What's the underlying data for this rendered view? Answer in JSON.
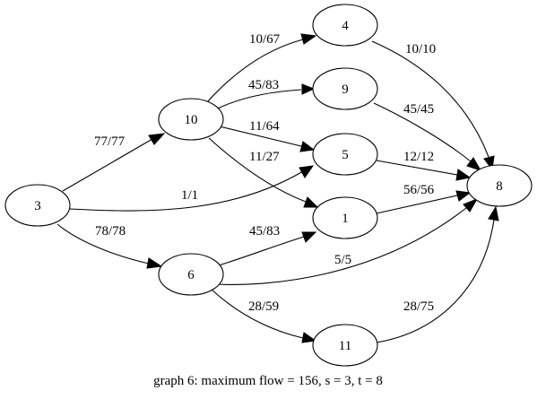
{
  "caption": "graph  6: maximum flow = 156, s = 3, t = 8",
  "nodes": {
    "n3": "3",
    "n10": "10",
    "n6": "6",
    "n4": "4",
    "n9": "9",
    "n5": "5",
    "n1": "1",
    "n11": "11",
    "n8": "8"
  },
  "edges": {
    "e3_10": "77/77",
    "e3_5": "1/1",
    "e3_6": "78/78",
    "e10_4": "10/67",
    "e10_9": "45/83",
    "e10_5": "11/64",
    "e10_1": "11/27",
    "e6_1": "45/83",
    "e6_8": "5/5",
    "e6_11": "28/59",
    "e4_8": "10/10",
    "e9_8": "45/45",
    "e5_8": "12/12",
    "e1_8": "56/56",
    "e11_8": "28/75"
  }
}
